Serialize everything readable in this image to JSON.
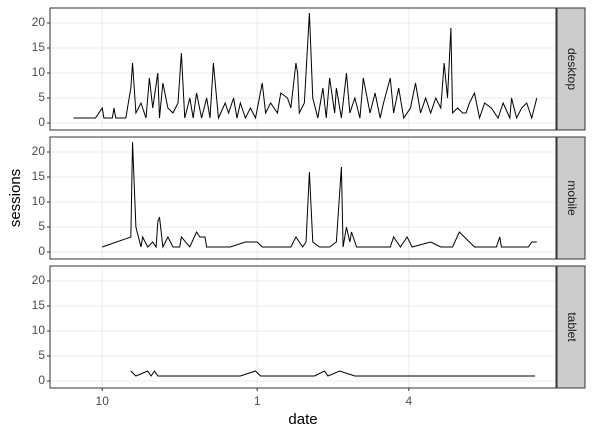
{
  "chart_data": {
    "type": "line",
    "x_label": "date",
    "y_label": "sessions",
    "xlim": [
      -31,
      269.4
    ],
    "xticks": [
      {
        "value": 0,
        "label": "10"
      },
      {
        "value": 92,
        "label": "1"
      },
      {
        "value": 182,
        "label": "4"
      }
    ],
    "ylim": [
      -1.4,
      23
    ],
    "yticks": [
      0,
      5,
      10,
      15,
      20
    ],
    "grid": true,
    "color": "#000000",
    "facets": [
      {
        "name": "desktop",
        "x": [
          -17,
          -4,
          0,
          1,
          6,
          7,
          8,
          14,
          17,
          18,
          20,
          23,
          26,
          28,
          30,
          33,
          34,
          36,
          39,
          42,
          45,
          47,
          49,
          52,
          54,
          56,
          59,
          62,
          64,
          66,
          69,
          73,
          75,
          78,
          80,
          82,
          85,
          88,
          91,
          95,
          97,
          100,
          104,
          106,
          110,
          112,
          115,
          116,
          117,
          120,
          123,
          125,
          128,
          131,
          133,
          135,
          138,
          139,
          142,
          145,
          147,
          150,
          153,
          155,
          159,
          162,
          165,
          167,
          171,
          173,
          176,
          179,
          183,
          186,
          189,
          192,
          195,
          198,
          201,
          203,
          205,
          207,
          208,
          211,
          214,
          216,
          218,
          221,
          224,
          227,
          231,
          235,
          238,
          242,
          243,
          246,
          249,
          252,
          255,
          258
        ],
        "values": [
          1,
          1,
          3,
          1,
          1,
          3,
          1,
          1,
          7,
          12,
          2,
          4,
          1,
          9,
          3,
          10,
          1,
          8,
          3,
          2,
          4,
          14,
          1,
          5,
          1,
          6,
          1,
          5,
          1,
          12,
          1,
          4,
          2,
          5,
          1,
          4,
          1,
          3,
          1,
          8,
          2,
          4,
          2,
          6,
          5,
          3,
          12,
          10,
          2,
          4,
          22,
          5,
          1,
          7,
          1,
          9,
          2,
          7,
          1,
          10,
          2,
          5,
          1,
          9,
          2,
          6,
          1,
          4,
          9,
          2,
          7,
          1,
          3,
          8,
          2,
          5,
          2,
          5,
          3,
          12,
          5,
          19,
          2,
          3,
          2,
          2,
          4,
          6,
          1,
          4,
          3,
          1,
          4,
          1,
          5,
          1,
          3,
          4,
          1,
          5
        ]
      },
      {
        "name": "mobile",
        "x": [
          0,
          17,
          18,
          20,
          23,
          24,
          27,
          30,
          32,
          33,
          34,
          36,
          39,
          42,
          46,
          47,
          52,
          56,
          58,
          61,
          62,
          67,
          76,
          85,
          92,
          95,
          112,
          115,
          119,
          121,
          123,
          125,
          129,
          135,
          139,
          142,
          143,
          145,
          147,
          148,
          151,
          162,
          171,
          173,
          177,
          181,
          184,
          195,
          201,
          205,
          208,
          212,
          218,
          221,
          234,
          236,
          237,
          253,
          255,
          258
        ],
        "values": [
          1,
          3,
          22,
          5,
          1,
          3,
          1,
          2,
          1,
          6,
          7,
          1,
          3,
          1,
          1,
          3,
          1,
          4,
          3,
          3,
          1,
          1,
          1,
          2,
          2,
          1,
          1,
          3,
          1,
          2,
          16,
          2,
          1,
          1,
          2,
          17,
          1,
          5,
          2,
          4,
          1,
          1,
          1,
          3,
          1,
          3,
          1,
          2,
          1,
          1,
          1,
          4,
          2,
          1,
          1,
          3,
          1,
          1,
          2,
          2
        ]
      },
      {
        "name": "tablet",
        "x": [
          17,
          20,
          27,
          29,
          31,
          33,
          82,
          91,
          94,
          126,
          132,
          134,
          141,
          150,
          257
        ],
        "values": [
          2,
          1,
          2,
          1,
          2,
          1,
          1,
          2,
          1,
          1,
          2,
          1,
          2,
          1,
          1
        ]
      }
    ]
  }
}
